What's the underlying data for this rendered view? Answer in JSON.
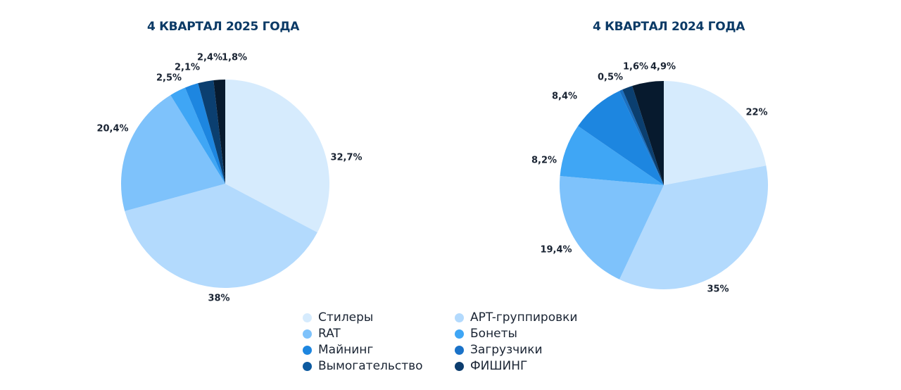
{
  "chart_data": [
    {
      "type": "pie",
      "title": "4 КВАРТАЛ 2025 ГОДА",
      "slices": [
        {
          "category": "Стилеры",
          "value": 32.7,
          "label": "32,7%"
        },
        {
          "category": "APT-группировки",
          "value": 38,
          "label": "38%"
        },
        {
          "category": "RAT",
          "value": 20.4,
          "label": "20,4%"
        },
        {
          "category": "Бонеты",
          "value": 2.5,
          "label": "2,5%"
        },
        {
          "category": "Майнинг",
          "value": 2.1,
          "label": "2,1%"
        },
        {
          "category": "Вымогательство",
          "value": 2.4,
          "label": "2,4%"
        },
        {
          "category": "ФИШИНГ",
          "value": 1.8,
          "label": "1,8%"
        }
      ]
    },
    {
      "type": "pie",
      "title": "4 КВАРТАЛ 2024 ГОДА",
      "slices": [
        {
          "category": "Стилеры",
          "value": 22,
          "label": "22%"
        },
        {
          "category": "APT-группировки",
          "value": 35,
          "label": "35%"
        },
        {
          "category": "RAT",
          "value": 19.4,
          "label": "19,4%"
        },
        {
          "category": "Бонеты",
          "value": 8.2,
          "label": "8,2%"
        },
        {
          "category": "Майнинг",
          "value": 8.4,
          "label": "8,4%"
        },
        {
          "category": "Загрузчики",
          "value": 0.5,
          "label": "0,5%"
        },
        {
          "category": "Вымогательство",
          "value": 1.6,
          "label": "1,6%"
        },
        {
          "category": "ФИШИНГ",
          "value": 4.9,
          "label": "4,9%"
        }
      ]
    }
  ],
  "legend": {
    "placement": "bottom",
    "items": [
      {
        "label": "Стилеры",
        "color": "#d6ebfd"
      },
      {
        "label": "APT-группировки",
        "color": "#b3dafd"
      },
      {
        "label": "RAT",
        "color": "#7ec2fb"
      },
      {
        "label": "Бонеты",
        "color": "#3fa6f5"
      },
      {
        "label": "Майнинг",
        "color": "#1d86e0"
      },
      {
        "label": "Загрузчики",
        "color": "#1a72c8"
      },
      {
        "label": "Вымогательство",
        "color": "#0d5aa0"
      },
      {
        "label": "ФИШИНГ",
        "color": "#0c3d6e"
      }
    ]
  },
  "pie_colors": {
    "Стилеры": "#d6ebfd",
    "APT-группировки": "#b3dafd",
    "RAT": "#7ec2fb",
    "Бонеты": "#3fa6f5",
    "Майнинг": "#1d86e0",
    "Загрузчики": "#1a6fc0",
    "Вымогательство": "#0b3f70",
    "ФИШИНГ": "#071a2e"
  }
}
